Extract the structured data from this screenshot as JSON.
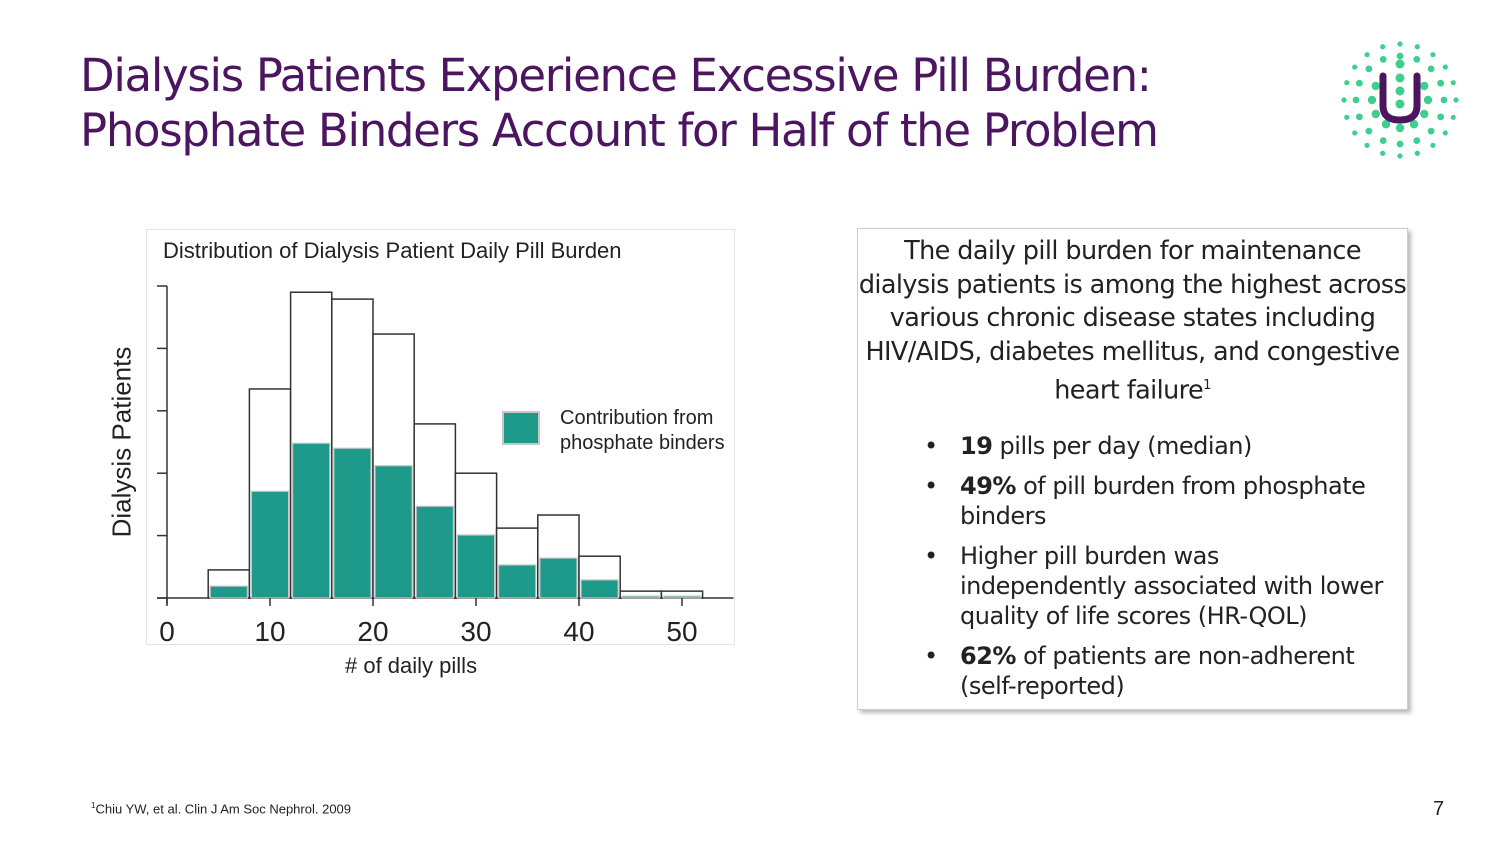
{
  "title_line1": "Dialysis Patients Experience Excessive Pill Burden:",
  "title_line2": "Phosphate Binders Account for Half of the Problem",
  "logo_letter": "U",
  "colors": {
    "brand_purple": "#4b1560",
    "logo_green": "#3ecf8e",
    "phosphate_teal": "#1e9a8a"
  },
  "chart_data": {
    "type": "bar",
    "title": "Distribution of Dialysis Patient Daily Pill Burden",
    "xlabel": "# of daily pills",
    "ylabel": "Dialysis Patients",
    "x_ticks": [
      0,
      10,
      20,
      30,
      40,
      50
    ],
    "xlim": [
      0,
      55
    ],
    "y_ticks_unlabeled": 5,
    "bins": [
      [
        4,
        8
      ],
      [
        8,
        12
      ],
      [
        12,
        16
      ],
      [
        16,
        20
      ],
      [
        20,
        24
      ],
      [
        24,
        28
      ],
      [
        28,
        32
      ],
      [
        32,
        36
      ],
      [
        36,
        40
      ],
      [
        40,
        44
      ],
      [
        44,
        48
      ],
      [
        48,
        52
      ]
    ],
    "series": [
      {
        "name": "total",
        "values": [
          0.45,
          3.35,
          4.9,
          4.79,
          4.23,
          2.79,
          2.0,
          1.12,
          1.33,
          0.67,
          0.11,
          0.11
        ]
      },
      {
        "name": "Contribution from phosphate binders",
        "values": [
          0.19,
          1.71,
          2.48,
          2.4,
          2.12,
          1.47,
          1.01,
          0.53,
          0.64,
          0.29,
          0.03,
          0.03
        ]
      }
    ],
    "legend_line1": "Contribution from",
    "legend_line2": "phosphate binders",
    "legend_placement": "right"
  },
  "panel": {
    "intro": "The daily pill burden for maintenance dialysis patients is among the highest across various chronic disease states including HIV/AIDS, diabetes mellitus, and congestive heart failure",
    "intro_ref": "1",
    "bullets": [
      {
        "bold": "19",
        "text": " pills per day (median)"
      },
      {
        "bold": "49%",
        "text": " of pill burden from phosphate binders"
      },
      {
        "bold": "",
        "text": "Higher pill burden was independently associated with lower quality of life scores (HR-QOL)"
      },
      {
        "bold": "62%",
        "text": " of patients are non-adherent (self-reported)"
      }
    ]
  },
  "footnote_ref": "1",
  "footnote": "Chiu YW, et al. Clin J Am Soc Nephrol. 2009",
  "page_number": "7"
}
